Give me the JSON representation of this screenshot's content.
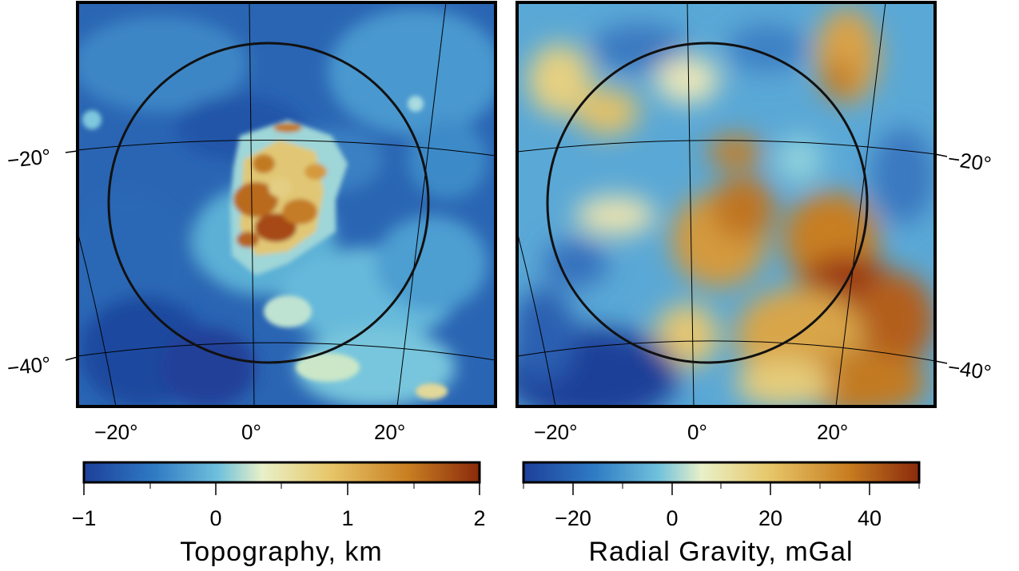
{
  "panels": [
    {
      "id": "topography",
      "lat_labels_left": [
        "−20°",
        "−40°"
      ],
      "lon_labels": [
        "−20°",
        "0°",
        "20°"
      ]
    },
    {
      "id": "gravity",
      "lat_labels_right": [
        "−20°",
        "−40°"
      ],
      "lon_labels": [
        "−20°",
        "0°",
        "20°"
      ]
    }
  ],
  "colorbars": [
    {
      "label": "Topography, km",
      "ticks": [
        "−1",
        "0",
        "1",
        "2"
      ],
      "range": [
        -1,
        2
      ]
    },
    {
      "label": "Radial Gravity, mGal",
      "ticks": [
        "−20",
        "0",
        "20",
        "40"
      ],
      "range": [
        -30,
        50
      ]
    }
  ],
  "colormap": {
    "name": "RdYlBu-like",
    "stops": [
      "#1d3f9a",
      "#2f7bc4",
      "#6fc1dc",
      "#e8f0c8",
      "#e7c76a",
      "#c87e21",
      "#8a2a0c"
    ]
  }
}
